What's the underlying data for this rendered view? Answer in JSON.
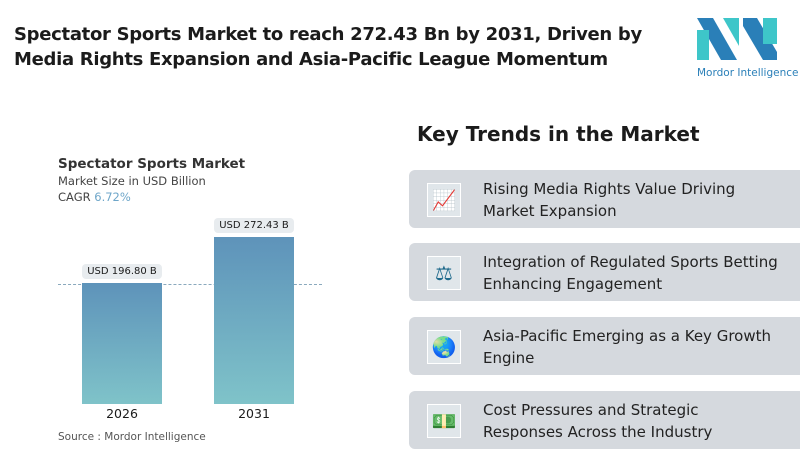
{
  "header": {
    "title": "Spectator Sports Market to reach 272.43 Bn by 2031, Driven by Media Rights Expansion and Asia-Pacific League Momentum",
    "logo_text": "Mordor Intelligence"
  },
  "chart_data": {
    "type": "bar",
    "title": "Spectator Sports Market",
    "subtitle": "Market Size in USD Billion",
    "cagr_label": "CAGR",
    "cagr_value": "6.72%",
    "categories": [
      "2026",
      "2031"
    ],
    "values": [
      196.8,
      272.43
    ],
    "data_labels": [
      "USD 196.80 B",
      "USD 272.43 B"
    ],
    "ylim": [
      0,
      272.43
    ],
    "colors": [
      "#5e93ba",
      "#7fc3c9"
    ],
    "source": "Source :  Mordor Intelligence"
  },
  "trends": {
    "heading": "Key Trends in the Market",
    "items": [
      {
        "icon": "line-chart-icon",
        "glyph": "📈",
        "text": "Rising Media Rights Value Driving Market Expansion"
      },
      {
        "icon": "scales-icon",
        "glyph": "⚖",
        "text": "Integration of Regulated Sports Betting Enhancing Engagement"
      },
      {
        "icon": "globe-icon",
        "glyph": "🌏",
        "text": "Asia-Pacific Emerging as a Key Growth Engine"
      },
      {
        "icon": "money-icon",
        "glyph": "💵",
        "text": "Cost Pressures and Strategic Responses Across the Industry"
      }
    ]
  }
}
